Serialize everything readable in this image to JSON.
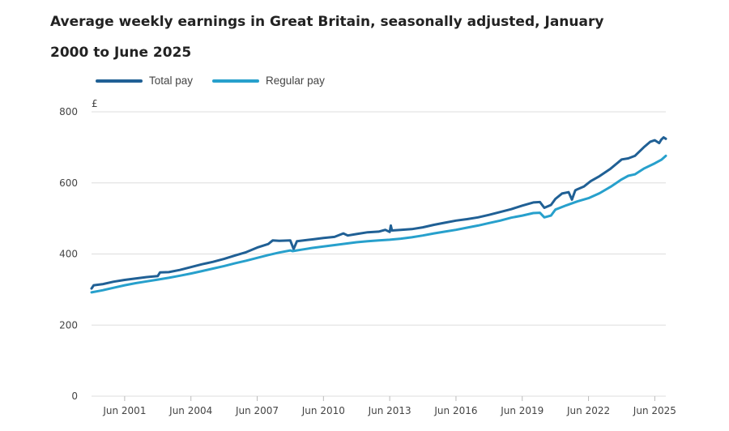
{
  "chart_data": {
    "type": "line",
    "title": "Average weekly earnings in Great Britain, seasonally adjusted, January 2000 to June 2025",
    "ylabel": "£",
    "xlabel": "",
    "ylim": [
      0,
      800
    ],
    "xlim": [
      2000.0,
      2025.5
    ],
    "yticks": [
      "0",
      "200",
      "400",
      "600",
      "800"
    ],
    "xticks": [
      "Jun 2001",
      "Jun 2004",
      "Jun 2007",
      "Jun 2010",
      "Jun 2013",
      "Jun 2016",
      "Jun 2019",
      "Jun 2022",
      "Jun 2025"
    ],
    "grid": "horizontal",
    "legend_position": "top-left",
    "series": [
      {
        "name": "Total pay",
        "color": "#206095",
        "points": [
          [
            2000.0,
            303
          ],
          [
            2000.1,
            312
          ],
          [
            2000.5,
            315
          ],
          [
            2001.0,
            322
          ],
          [
            2001.5,
            327
          ],
          [
            2002.0,
            331
          ],
          [
            2002.5,
            335
          ],
          [
            2003.0,
            338
          ],
          [
            2003.1,
            348
          ],
          [
            2003.5,
            349
          ],
          [
            2004.0,
            355
          ],
          [
            2004.5,
            363
          ],
          [
            2005.0,
            371
          ],
          [
            2005.5,
            378
          ],
          [
            2006.0,
            386
          ],
          [
            2006.5,
            396
          ],
          [
            2007.0,
            405
          ],
          [
            2007.5,
            418
          ],
          [
            2008.0,
            428
          ],
          [
            2008.2,
            438
          ],
          [
            2008.5,
            437
          ],
          [
            2009.0,
            438
          ],
          [
            2009.15,
            414
          ],
          [
            2009.3,
            436
          ],
          [
            2010.0,
            441
          ],
          [
            2010.5,
            445
          ],
          [
            2011.0,
            448
          ],
          [
            2011.4,
            458
          ],
          [
            2011.6,
            452
          ],
          [
            2012.0,
            456
          ],
          [
            2012.5,
            461
          ],
          [
            2013.0,
            463
          ],
          [
            2013.3,
            468
          ],
          [
            2013.5,
            462
          ],
          [
            2013.55,
            480
          ],
          [
            2013.6,
            466
          ],
          [
            2014.0,
            468
          ],
          [
            2014.5,
            470
          ],
          [
            2015.0,
            475
          ],
          [
            2015.5,
            482
          ],
          [
            2016.0,
            488
          ],
          [
            2016.5,
            494
          ],
          [
            2017.0,
            498
          ],
          [
            2017.5,
            503
          ],
          [
            2018.0,
            510
          ],
          [
            2018.5,
            518
          ],
          [
            2019.0,
            526
          ],
          [
            2019.5,
            536
          ],
          [
            2020.0,
            545
          ],
          [
            2020.3,
            546
          ],
          [
            2020.5,
            530
          ],
          [
            2020.8,
            538
          ],
          [
            2021.0,
            555
          ],
          [
            2021.3,
            570
          ],
          [
            2021.6,
            574
          ],
          [
            2021.75,
            553
          ],
          [
            2021.9,
            579
          ],
          [
            2022.0,
            582
          ],
          [
            2022.3,
            590
          ],
          [
            2022.6,
            605
          ],
          [
            2023.0,
            619
          ],
          [
            2023.5,
            640
          ],
          [
            2024.0,
            666
          ],
          [
            2024.3,
            669
          ],
          [
            2024.6,
            676
          ],
          [
            2025.0,
            700
          ],
          [
            2025.3,
            716
          ],
          [
            2025.5,
            720
          ],
          [
            2025.7,
            712
          ],
          [
            2025.8,
            722
          ],
          [
            2025.9,
            728
          ],
          [
            2026.0,
            724
          ]
        ]
      },
      {
        "name": "Regular pay",
        "color": "#27a0cc",
        "points": [
          [
            2000.0,
            292
          ],
          [
            2000.5,
            298
          ],
          [
            2001.0,
            305
          ],
          [
            2001.5,
            312
          ],
          [
            2002.0,
            318
          ],
          [
            2002.5,
            323
          ],
          [
            2003.0,
            328
          ],
          [
            2003.5,
            333
          ],
          [
            2004.0,
            339
          ],
          [
            2004.5,
            345
          ],
          [
            2005.0,
            352
          ],
          [
            2005.5,
            359
          ],
          [
            2006.0,
            366
          ],
          [
            2006.5,
            374
          ],
          [
            2007.0,
            381
          ],
          [
            2007.5,
            389
          ],
          [
            2008.0,
            397
          ],
          [
            2008.5,
            404
          ],
          [
            2009.0,
            410
          ],
          [
            2009.1,
            408
          ],
          [
            2009.5,
            412
          ],
          [
            2010.0,
            417
          ],
          [
            2010.5,
            421
          ],
          [
            2011.0,
            425
          ],
          [
            2011.5,
            429
          ],
          [
            2012.0,
            433
          ],
          [
            2012.5,
            436
          ],
          [
            2013.0,
            438
          ],
          [
            2013.5,
            440
          ],
          [
            2014.0,
            443
          ],
          [
            2014.5,
            447
          ],
          [
            2015.0,
            452
          ],
          [
            2015.5,
            458
          ],
          [
            2016.0,
            463
          ],
          [
            2016.5,
            468
          ],
          [
            2017.0,
            474
          ],
          [
            2017.5,
            480
          ],
          [
            2018.0,
            487
          ],
          [
            2018.5,
            494
          ],
          [
            2019.0,
            502
          ],
          [
            2019.5,
            508
          ],
          [
            2020.0,
            515
          ],
          [
            2020.3,
            516
          ],
          [
            2020.5,
            503
          ],
          [
            2020.8,
            508
          ],
          [
            2021.0,
            525
          ],
          [
            2021.5,
            537
          ],
          [
            2022.0,
            548
          ],
          [
            2022.5,
            557
          ],
          [
            2023.0,
            571
          ],
          [
            2023.5,
            589
          ],
          [
            2024.0,
            610
          ],
          [
            2024.3,
            620
          ],
          [
            2024.6,
            624
          ],
          [
            2025.0,
            640
          ],
          [
            2025.5,
            655
          ],
          [
            2025.8,
            665
          ],
          [
            2026.0,
            676
          ]
        ]
      }
    ]
  }
}
